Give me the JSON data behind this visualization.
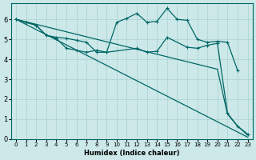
{
  "xlabel": "Humidex (Indice chaleur)",
  "bg_color": "#cce8e8",
  "grid_color": "#b0d4d4",
  "line_color": "#006666",
  "xlim": [
    -0.5,
    23.5
  ],
  "ylim": [
    0,
    6.8
  ],
  "xticks": [
    0,
    1,
    2,
    3,
    4,
    5,
    6,
    7,
    8,
    9,
    10,
    11,
    12,
    13,
    14,
    15,
    16,
    17,
    18,
    19,
    20,
    21,
    22,
    23
  ],
  "yticks": [
    0,
    1,
    2,
    3,
    4,
    5,
    6
  ],
  "line1_x": [
    0,
    23
  ],
  "line1_y": [
    6.0,
    0.1
  ],
  "line2_x": [
    0,
    20,
    21,
    22,
    23
  ],
  "line2_y": [
    6.0,
    3.5,
    1.25,
    0.65,
    0.2
  ],
  "line3_x": [
    0,
    1,
    2,
    3,
    4,
    5,
    6,
    7,
    8,
    9,
    10,
    11,
    12,
    13,
    14,
    15,
    16,
    17,
    18,
    19,
    20,
    21,
    22
  ],
  "line3_y": [
    6.0,
    5.85,
    5.7,
    5.2,
    5.1,
    5.05,
    4.95,
    4.85,
    4.35,
    4.35,
    5.85,
    6.05,
    6.3,
    5.85,
    5.9,
    6.55,
    6.0,
    5.95,
    5.0,
    4.85,
    4.9,
    4.85,
    3.45
  ],
  "line4_x": [
    0,
    1,
    2,
    3,
    4,
    5,
    6,
    7,
    8,
    9,
    12,
    13,
    14,
    15,
    17,
    18,
    19,
    20,
    21,
    22,
    23
  ],
  "line4_y": [
    6.0,
    5.85,
    5.7,
    5.2,
    5.05,
    4.55,
    4.45,
    4.35,
    4.45,
    4.35,
    4.55,
    4.35,
    4.4,
    5.1,
    4.6,
    4.55,
    4.7,
    4.8,
    1.3,
    0.65,
    0.25
  ]
}
